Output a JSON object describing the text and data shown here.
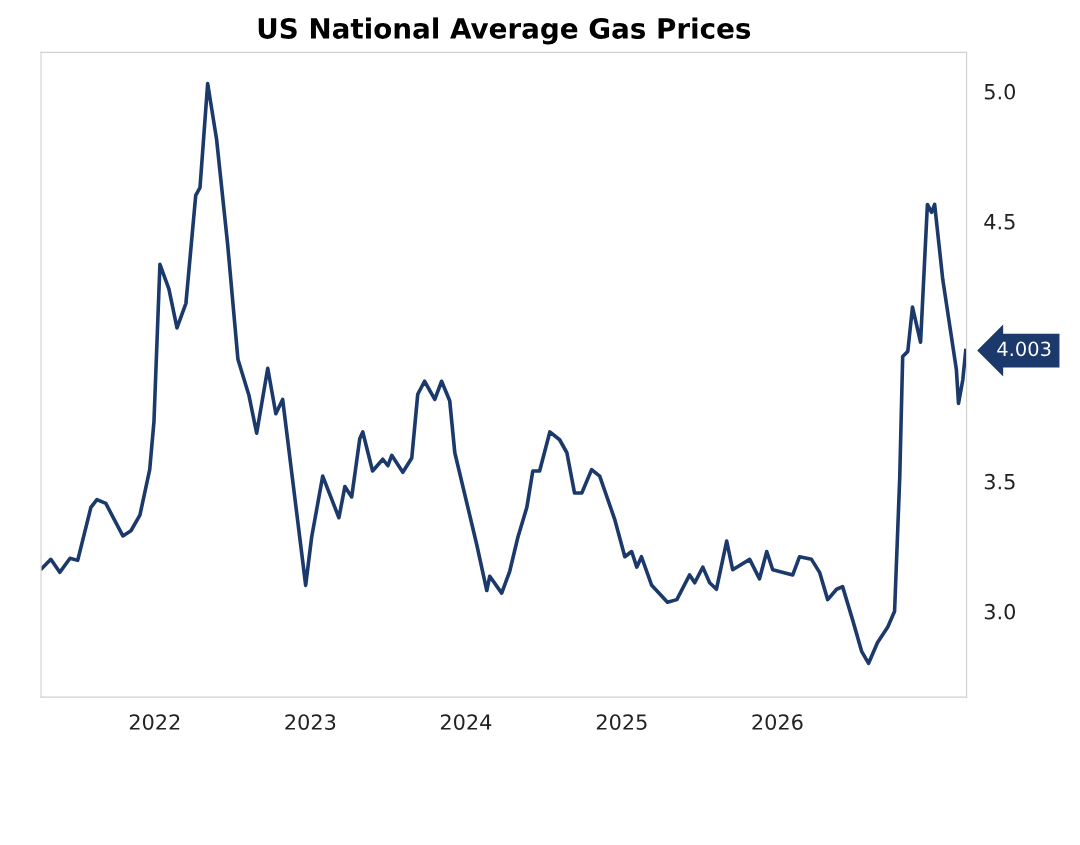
{
  "chart_data": {
    "type": "line",
    "title": "US National Average Gas Prices",
    "x": [
      "2021-04-11",
      "2021-05-02",
      "2021-05-23",
      "2021-06-16",
      "2021-07-04",
      "2021-08-04",
      "2021-08-18",
      "2021-09-08",
      "2021-10-18",
      "2021-11-06",
      "2021-11-27",
      "2021-12-20",
      "2021-12-30",
      "2022-01-13",
      "2022-02-03",
      "2022-02-22",
      "2022-03-15",
      "2022-04-07",
      "2022-04-17",
      "2022-05-05",
      "2022-05-26",
      "2022-06-21",
      "2022-07-15",
      "2022-08-10",
      "2022-08-28",
      "2022-09-23",
      "2022-10-12",
      "2022-10-28",
      "2022-12-21",
      "2023-01-04",
      "2023-01-30",
      "2023-03-09",
      "2023-03-23",
      "2023-04-08",
      "2023-04-27",
      "2023-05-04",
      "2023-05-27",
      "2023-06-20",
      "2023-07-02",
      "2023-07-11",
      "2023-08-06",
      "2023-08-27",
      "2023-09-10",
      "2023-09-26",
      "2023-10-20",
      "2023-11-05",
      "2023-11-24",
      "2023-12-06",
      "2024-01-26",
      "2024-02-19",
      "2024-02-26",
      "2024-03-25",
      "2024-04-13",
      "2024-05-02",
      "2024-05-23",
      "2024-06-06",
      "2024-06-22",
      "2024-07-16",
      "2024-08-08",
      "2024-08-25",
      "2024-09-12",
      "2024-09-29",
      "2024-10-22",
      "2024-11-10",
      "2024-12-15",
      "2025-01-08",
      "2025-01-24",
      "2025-02-05",
      "2025-02-16",
      "2025-03-12",
      "2025-04-18",
      "2025-05-10",
      "2025-06-09",
      "2025-06-21",
      "2025-07-10",
      "2025-07-26",
      "2025-08-11",
      "2025-09-04",
      "2025-09-18",
      "2025-10-28",
      "2025-11-20",
      "2025-12-07",
      "2025-12-21",
      "2026-02-06",
      "2026-02-22",
      "2026-03-22",
      "2026-04-10",
      "2026-04-29",
      "2026-05-20",
      "2026-06-03",
      "2026-06-26",
      "2026-07-18",
      "2026-08-03",
      "2026-08-24",
      "2026-09-17",
      "2026-10-03",
      "2026-10-15",
      "2026-10-22",
      "2026-11-03",
      "2026-11-14",
      "2026-12-03",
      "2026-12-19",
      "2026-12-29",
      "2027-01-05",
      "2027-01-24",
      "2027-02-25",
      "2027-03-02",
      "2027-03-12",
      "2027-03-19"
    ],
    "series": [
      {
        "color": "#1b3a6b",
        "values": [
          3.165,
          3.2,
          3.15,
          3.204,
          3.196,
          3.4,
          3.43,
          3.415,
          3.29,
          3.31,
          3.37,
          3.545,
          3.73,
          4.335,
          4.24,
          4.09,
          4.185,
          4.6,
          4.63,
          5.03,
          4.815,
          4.41,
          3.97,
          3.83,
          3.685,
          3.935,
          3.76,
          3.815,
          3.1,
          3.285,
          3.52,
          3.36,
          3.48,
          3.44,
          3.665,
          3.69,
          3.54,
          3.585,
          3.56,
          3.6,
          3.535,
          3.59,
          3.835,
          3.885,
          3.815,
          3.885,
          3.81,
          3.61,
          3.26,
          3.08,
          3.135,
          3.07,
          3.155,
          3.285,
          3.4,
          3.54,
          3.54,
          3.69,
          3.66,
          3.61,
          3.455,
          3.455,
          3.545,
          3.52,
          3.355,
          3.21,
          3.23,
          3.17,
          3.21,
          3.1,
          3.035,
          3.045,
          3.14,
          3.11,
          3.17,
          3.11,
          3.085,
          3.27,
          3.16,
          3.2,
          3.125,
          3.23,
          3.16,
          3.14,
          3.21,
          3.2,
          3.15,
          3.045,
          3.085,
          3.095,
          2.97,
          2.845,
          2.8,
          2.88,
          2.94,
          3.0,
          3.51,
          3.98,
          4.0,
          4.17,
          4.035,
          4.565,
          4.535,
          4.565,
          4.277,
          3.93,
          3.8,
          3.89,
          4.003
        ]
      }
    ],
    "xlim": [
      "2021-04-09",
      "2027-03-21"
    ],
    "xticks": [
      {
        "value": "2022-01-01",
        "label": "2022"
      },
      {
        "value": "2023-01-01",
        "label": "2023"
      },
      {
        "value": "2024-01-01",
        "label": "2024"
      },
      {
        "value": "2025-01-01",
        "label": "2025"
      },
      {
        "value": "2026-01-01",
        "label": "2026"
      }
    ],
    "ylim": [
      2.67,
      5.15
    ],
    "yticks": [
      {
        "value": 3.0,
        "label": "3.0"
      },
      {
        "value": 3.5,
        "label": "3.5"
      },
      {
        "value": 4.5,
        "label": "4.5"
      },
      {
        "value": 5.0,
        "label": "5.0"
      }
    ],
    "annotations": [
      {
        "text": "4.003",
        "x": "2027-03-19",
        "y": 4.003
      }
    ],
    "grid": false,
    "legend": false,
    "marker": "none",
    "line_style": "solid"
  }
}
